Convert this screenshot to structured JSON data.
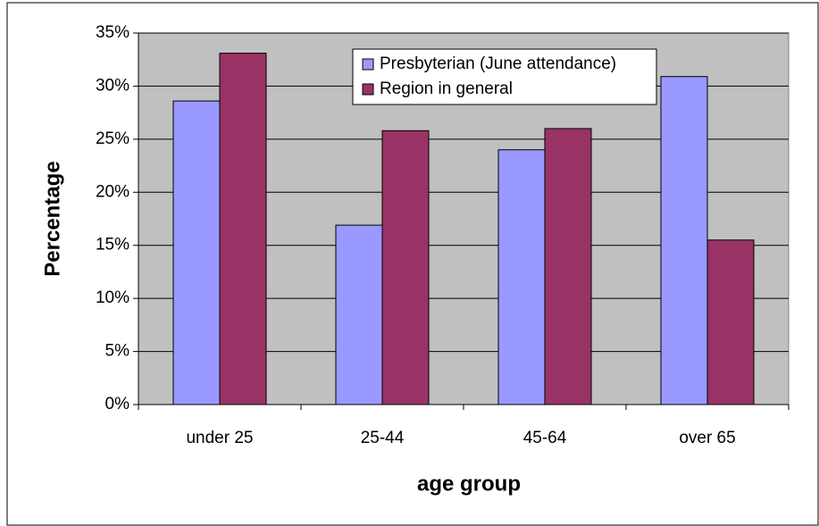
{
  "chart_data": {
    "type": "bar",
    "categories": [
      "under 25",
      "25-44",
      "45-64",
      "over 65"
    ],
    "series": [
      {
        "name": "Presbyterian (June attendance)",
        "color": "#9999ff",
        "values": [
          28.6,
          16.9,
          24.0,
          30.9
        ]
      },
      {
        "name": "Region in general",
        "color": "#993366",
        "values": [
          33.1,
          25.8,
          26.0,
          15.5
        ]
      }
    ],
    "x_label": "age group",
    "y_label": "Percentage",
    "ylim": [
      0,
      35
    ],
    "yticks": [
      {
        "value": 0,
        "label": "0%"
      },
      {
        "value": 5,
        "label": "5%"
      },
      {
        "value": 10,
        "label": "10%"
      },
      {
        "value": 15,
        "label": "15%"
      },
      {
        "value": 20,
        "label": "20%"
      },
      {
        "value": 25,
        "label": "25%"
      },
      {
        "value": 30,
        "label": "30%"
      },
      {
        "value": 35,
        "label": "35%"
      }
    ],
    "grid": true,
    "plot_background": "#c0c0c0"
  }
}
